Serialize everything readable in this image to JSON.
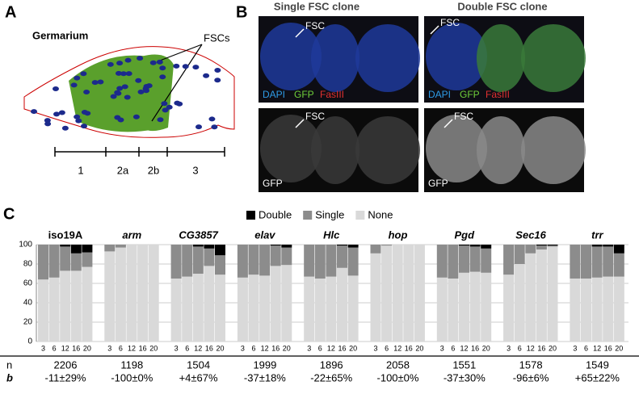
{
  "panel_a": {
    "label": "A",
    "title": "Germarium",
    "annotation": "FSCs",
    "regions": [
      "1",
      "2a",
      "2b",
      "3"
    ]
  },
  "panel_b": {
    "label": "B",
    "columns": [
      "Single FSC clone",
      "Double FSC clone"
    ],
    "pointer": "FSC",
    "stains": [
      "DAPI",
      "GFP",
      "FasIII"
    ],
    "channel": "GFP"
  },
  "chart_data": {
    "type": "bar",
    "stacked": true,
    "label": "C",
    "grid": true,
    "series": [
      {
        "name": "Double",
        "color": "#000000"
      },
      {
        "name": "Single",
        "color": "#8c8c8c"
      },
      {
        "name": "None",
        "color": "#d9d9d9"
      }
    ],
    "categories": [
      "3",
      "6",
      "12",
      "16",
      "20"
    ],
    "ylim": [
      0,
      100
    ],
    "yticks": [
      0,
      20,
      40,
      60,
      80,
      100
    ],
    "row_labels": [
      "n",
      "b"
    ],
    "groups": [
      {
        "title": "iso19A",
        "italic": false,
        "n": 2206,
        "b": "-11±29%",
        "values": [
          [
            0,
            0,
            2,
            9,
            8
          ],
          [
            36,
            34,
            25,
            18,
            15
          ],
          [
            64,
            66,
            73,
            73,
            77
          ]
        ]
      },
      {
        "title": "arm",
        "italic": true,
        "n": 1198,
        "b": "-100±0%",
        "values": [
          [
            0,
            0,
            0,
            0,
            0
          ],
          [
            7,
            3,
            0,
            0,
            0
          ],
          [
            93,
            97,
            100,
            100,
            100
          ]
        ]
      },
      {
        "title": "CG3857",
        "italic": true,
        "n": 1504,
        "b": "+4±67%",
        "values": [
          [
            0,
            0,
            2,
            4,
            11
          ],
          [
            35,
            33,
            28,
            18,
            20
          ],
          [
            65,
            67,
            70,
            78,
            69
          ]
        ]
      },
      {
        "title": "elav",
        "italic": true,
        "n": 1999,
        "b": "-37±18%",
        "values": [
          [
            0,
            0,
            0,
            1,
            3
          ],
          [
            34,
            31,
            32,
            21,
            18
          ],
          [
            66,
            69,
            68,
            78,
            79
          ]
        ]
      },
      {
        "title": "Hlc",
        "italic": true,
        "n": 1896,
        "b": "-22±65%",
        "values": [
          [
            0,
            0,
            0,
            1,
            3
          ],
          [
            33,
            35,
            33,
            23,
            29
          ],
          [
            67,
            65,
            67,
            76,
            68
          ]
        ]
      },
      {
        "title": "hop",
        "italic": true,
        "n": 2058,
        "b": "-100±0%",
        "values": [
          [
            0,
            0,
            0,
            0,
            0
          ],
          [
            9,
            1,
            0,
            0,
            0
          ],
          [
            91,
            99,
            100,
            100,
            100
          ]
        ]
      },
      {
        "title": "Pgd",
        "italic": true,
        "n": 1551,
        "b": "-37±30%",
        "values": [
          [
            0,
            0,
            1,
            2,
            4
          ],
          [
            34,
            35,
            28,
            26,
            25
          ],
          [
            66,
            65,
            71,
            72,
            71
          ]
        ]
      },
      {
        "title": "Sec16",
        "italic": true,
        "n": 1578,
        "b": "-96±6%",
        "values": [
          [
            0,
            0,
            0,
            1,
            1
          ],
          [
            31,
            20,
            9,
            4,
            1
          ],
          [
            69,
            80,
            91,
            95,
            98
          ]
        ]
      },
      {
        "title": "trr",
        "italic": true,
        "n": 1549,
        "b": "+65±22%",
        "values": [
          [
            0,
            0,
            2,
            2,
            9
          ],
          [
            35,
            35,
            32,
            31,
            24
          ],
          [
            65,
            65,
            66,
            67,
            67
          ]
        ]
      }
    ]
  }
}
